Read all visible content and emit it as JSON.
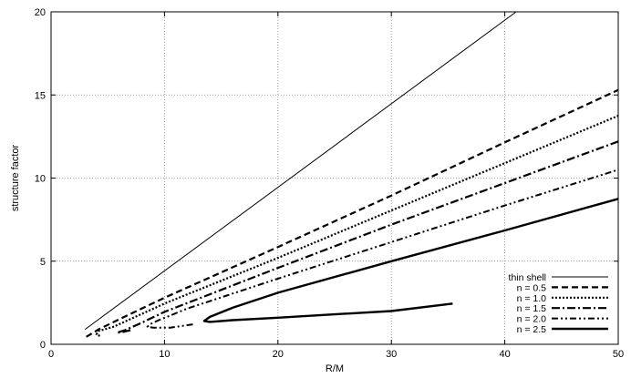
{
  "chart_data": {
    "type": "line",
    "xlabel": "R/M",
    "ylabel": "structure factor",
    "xlim": [
      0,
      50
    ],
    "ylim": [
      0,
      20
    ],
    "xticks": [
      0,
      10,
      20,
      30,
      40,
      50
    ],
    "yticks": [
      0,
      5,
      10,
      15,
      20
    ],
    "grid": true,
    "legend_position": "bottom-right",
    "series": [
      {
        "name": "thin shell",
        "style": "thin-solid",
        "points": [
          [
            3,
            0.9
          ],
          [
            41,
            20
          ]
        ]
      },
      {
        "name": "n = 0.5",
        "style": "dashed",
        "points": [
          [
            3.1,
            0.45
          ],
          [
            3.6,
            0.65
          ],
          [
            4.2,
            0.9
          ],
          [
            6,
            1.5
          ],
          [
            10,
            2.8
          ],
          [
            20,
            5.85
          ],
          [
            30,
            8.95
          ],
          [
            40,
            12.15
          ],
          [
            50,
            15.3
          ]
        ]
      },
      {
        "name": "n = 1.0",
        "style": "dotted",
        "points": [
          [
            4.3,
            0.5
          ],
          [
            4.0,
            0.6
          ],
          [
            4.2,
            0.8
          ],
          [
            5.5,
            1.05
          ],
          [
            10,
            2.45
          ],
          [
            20,
            5.2
          ],
          [
            30,
            8.05
          ],
          [
            40,
            10.9
          ],
          [
            50,
            13.75
          ]
        ]
      },
      {
        "name": "n = 1.5",
        "style": "dash-dot",
        "points": [
          [
            7.0,
            0.85
          ],
          [
            6.2,
            0.72
          ],
          [
            5.8,
            0.7
          ],
          [
            6.5,
            0.85
          ],
          [
            8,
            1.3
          ],
          [
            10,
            1.95
          ],
          [
            20,
            4.6
          ],
          [
            30,
            7.2
          ],
          [
            40,
            9.7
          ],
          [
            50,
            12.2
          ]
        ]
      },
      {
        "name": "n = 2.0",
        "style": "dash-dot-dot",
        "points": [
          [
            12.5,
            1.2
          ],
          [
            10.5,
            1.0
          ],
          [
            9.0,
            1.0
          ],
          [
            8.5,
            1.05
          ],
          [
            8.7,
            1.2
          ],
          [
            9.5,
            1.45
          ],
          [
            12,
            2.15
          ],
          [
            20,
            3.95
          ],
          [
            30,
            6.15
          ],
          [
            40,
            8.35
          ],
          [
            50,
            10.5
          ]
        ]
      },
      {
        "name": "n = 2.5",
        "style": "thick-solid",
        "points": [
          [
            35.4,
            2.45
          ],
          [
            30,
            2.0
          ],
          [
            25,
            1.8
          ],
          [
            20,
            1.6
          ],
          [
            16,
            1.45
          ],
          [
            14,
            1.35
          ],
          [
            13.5,
            1.4
          ],
          [
            14,
            1.65
          ],
          [
            16,
            2.2
          ],
          [
            20,
            3.1
          ],
          [
            30,
            5.0
          ],
          [
            40,
            6.85
          ],
          [
            50,
            8.75
          ]
        ]
      }
    ]
  }
}
